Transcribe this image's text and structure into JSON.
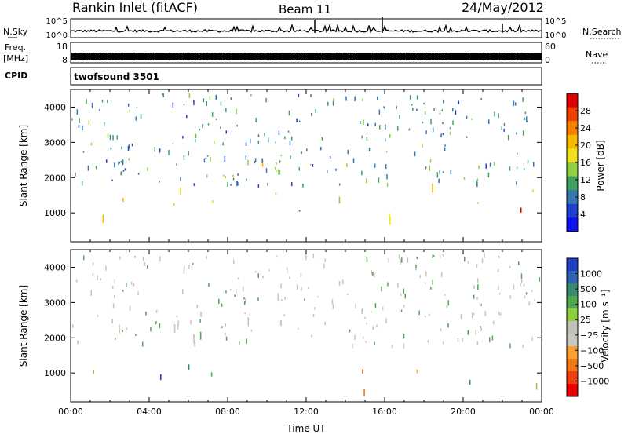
{
  "header": {
    "title": "Rankin Inlet (fitACF)",
    "beam": "Beam 11",
    "date": "24/May/2012"
  },
  "strips": {
    "nsky": {
      "left_label": "N.Sky",
      "right_label": "N.Search",
      "left_ticks": [
        "10^5",
        "10^0"
      ],
      "right_ticks": [
        "10^5",
        "10^0"
      ]
    },
    "freq": {
      "left_label_1": "Freq.",
      "left_label_2": "[MHz]",
      "left_ticks": [
        "18",
        "8"
      ],
      "right_label": "Nave",
      "right_ticks": [
        "60",
        "0"
      ]
    },
    "cpid": {
      "label": "CPID",
      "value": "twofsound 3501"
    }
  },
  "chart_data": [
    {
      "type": "heatmap",
      "name": "power",
      "ylabel": "Slant Range [km]",
      "yticks": [
        1000,
        2000,
        3000,
        4000
      ],
      "ylim": [
        180,
        4500
      ],
      "xlim_hours": [
        0,
        24
      ],
      "colorbar": {
        "label": "Power [dB]",
        "ticks": [
          "28",
          "24",
          "20",
          "16",
          "12",
          "8",
          "4"
        ],
        "colors": [
          "#dd0000",
          "#f04000",
          "#f88000",
          "#f8b800",
          "#f0e020",
          "#90d040",
          "#40a060",
          "#3878b0",
          "#2040d0",
          "#1010f0"
        ]
      },
      "regions": [
        {
          "t0": 0.0,
          "t1": 1.5,
          "r0": 500,
          "r1": 950,
          "p": 27
        },
        {
          "t0": 0.0,
          "t1": 3.0,
          "r0": 1300,
          "r1": 2100,
          "p": 20
        },
        {
          "t0": 0.5,
          "t1": 2.5,
          "r0": 950,
          "r1": 1300,
          "p": 14
        },
        {
          "t0": 1.5,
          "t1": 3.5,
          "r0": 300,
          "r1": 1000,
          "p": 26
        },
        {
          "t0": 3.5,
          "t1": 6.0,
          "r0": 400,
          "r1": 1300,
          "p": 22
        },
        {
          "t0": 4.2,
          "t1": 6.5,
          "r0": 1500,
          "r1": 2400,
          "p": 18
        },
        {
          "t0": 4.0,
          "t1": 6.0,
          "r0": 2600,
          "r1": 3300,
          "p": 10
        },
        {
          "t0": 6.0,
          "t1": 9.5,
          "r0": 600,
          "r1": 1400,
          "p": 18
        },
        {
          "t0": 6.5,
          "t1": 11.0,
          "r0": 1700,
          "r1": 2600,
          "p": 17
        },
        {
          "t0": 9.0,
          "t1": 10.5,
          "r0": 2600,
          "r1": 3300,
          "p": 14
        },
        {
          "t0": 10.0,
          "t1": 13.5,
          "r0": 1500,
          "r1": 2300,
          "p": 15
        },
        {
          "t0": 11.0,
          "t1": 14.0,
          "r0": 600,
          "r1": 1200,
          "p": 12
        },
        {
          "t0": 13.5,
          "t1": 16.0,
          "r0": 1200,
          "r1": 2000,
          "p": 14
        },
        {
          "t0": 14.0,
          "t1": 17.0,
          "r0": 400,
          "r1": 900,
          "p": 16
        },
        {
          "t0": 15.5,
          "t1": 18.5,
          "r0": 600,
          "r1": 1400,
          "p": 23
        },
        {
          "t0": 17.5,
          "t1": 20.5,
          "r0": 1500,
          "r1": 2200,
          "p": 16
        },
        {
          "t0": 19.5,
          "t1": 24.0,
          "r0": 1200,
          "r1": 2000,
          "p": 18
        },
        {
          "t0": 21.0,
          "t1": 24.0,
          "r0": 500,
          "r1": 1100,
          "p": 25
        },
        {
          "t0": 18.5,
          "t1": 19.5,
          "r0": 3700,
          "r1": 4000,
          "p": 10
        },
        {
          "t0": 7.5,
          "t1": 9.0,
          "r0": 2700,
          "r1": 3100,
          "p": 12
        }
      ]
    },
    {
      "type": "heatmap",
      "name": "velocity",
      "xlabel": "Time UT",
      "ylabel": "Slant Range [km]",
      "yticks": [
        1000,
        2000,
        3000,
        4000
      ],
      "ylim": [
        180,
        4500
      ],
      "xticks": [
        "00:00",
        "04:00",
        "08:00",
        "12:00",
        "16:00",
        "20:00",
        "00:00"
      ],
      "xlim_hours": [
        0,
        24
      ],
      "colorbar": {
        "label": "Velocity [m s⁻¹]",
        "ticks": [
          "1000",
          "500",
          "100",
          "25",
          "−25",
          "−100",
          "−500",
          "−1000"
        ],
        "colors": [
          "#2040c0",
          "#3060b0",
          "#3a8a70",
          "#50a850",
          "#90d040",
          "#c0c0b8",
          "#c8c8c0",
          "#f8a030",
          "#f07818",
          "#f04010",
          "#e80000"
        ]
      },
      "regions": [
        {
          "t0": 0.0,
          "t1": 6.0,
          "r0": 1500,
          "r1": 2200,
          "v": "gray"
        },
        {
          "t0": 6.0,
          "t1": 12.0,
          "r0": 1800,
          "r1": 3400,
          "v": "gray"
        },
        {
          "t0": 0.0,
          "t1": 3.0,
          "r0": 600,
          "r1": 1400,
          "v": "green"
        },
        {
          "t0": 3.5,
          "t1": 5.5,
          "r0": 500,
          "r1": 1300,
          "v": "blue"
        },
        {
          "t0": 5.5,
          "t1": 9.5,
          "r0": 500,
          "r1": 1300,
          "v": "teal"
        },
        {
          "t0": 12.0,
          "t1": 16.0,
          "r0": 300,
          "r1": 800,
          "v": "orange"
        },
        {
          "t0": 14.0,
          "t1": 17.5,
          "r0": 900,
          "r1": 1700,
          "v": "redorange"
        },
        {
          "t0": 16.0,
          "t1": 18.0,
          "r0": 500,
          "r1": 1000,
          "v": "orange"
        },
        {
          "t0": 17.5,
          "t1": 24.0,
          "r0": 1400,
          "r1": 2100,
          "v": "gray"
        },
        {
          "t0": 19.0,
          "t1": 24.0,
          "r0": 500,
          "r1": 1300,
          "v": "green"
        },
        {
          "t0": 22.5,
          "t1": 24.0,
          "r0": 500,
          "r1": 1000,
          "v": "lightgreen"
        }
      ]
    }
  ]
}
